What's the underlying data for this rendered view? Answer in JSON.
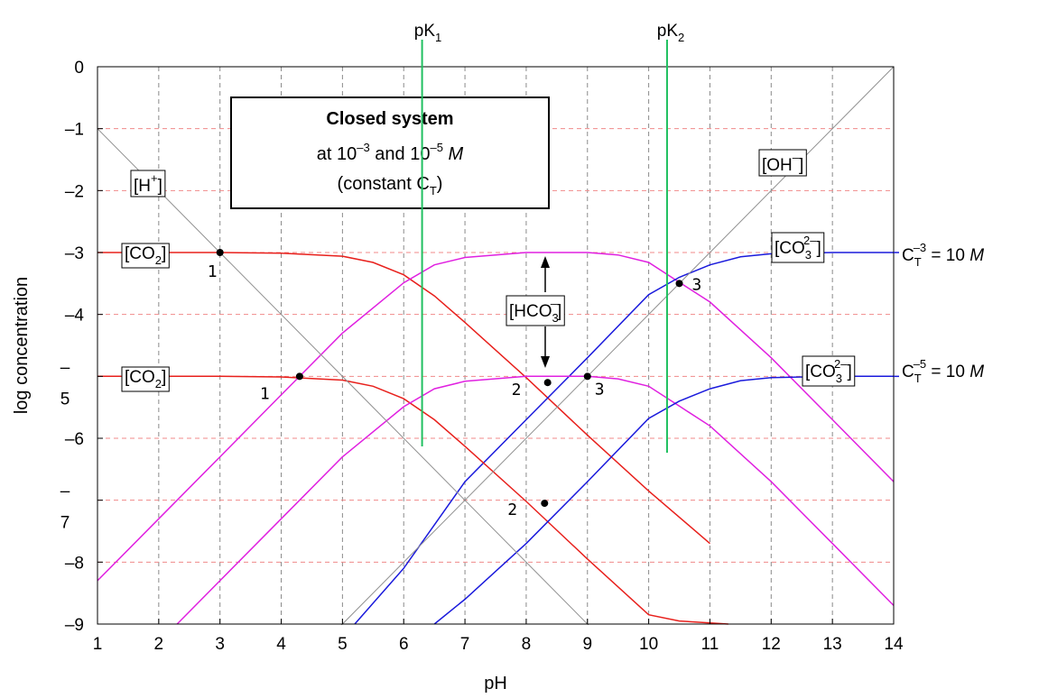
{
  "chart_data": {
    "type": "line",
    "title": "",
    "xlabel": "pH",
    "ylabel": "log concentration",
    "xlim": [
      1,
      14
    ],
    "ylim": [
      -9,
      0
    ],
    "x_ticks": [
      "1",
      "2",
      "3",
      "4",
      "5",
      "6",
      "7",
      "8",
      "9",
      "10",
      "11",
      "12",
      "13",
      "14"
    ],
    "y_ticks": [
      {
        "value": 0,
        "label": "0"
      },
      {
        "value": -1,
        "label": "–1"
      },
      {
        "value": -2,
        "label": "–2"
      },
      {
        "value": -3,
        "label": "–3"
      },
      {
        "value": -4,
        "label": "–4"
      },
      {
        "value": -5,
        "label": "–\n5"
      },
      {
        "value": -6,
        "label": "–6"
      },
      {
        "value": -7,
        "label": "–\n7"
      },
      {
        "value": -8,
        "label": "–8"
      },
      {
        "value": -9,
        "label": "–9"
      }
    ],
    "grid": true,
    "pK": [
      {
        "label": "pK",
        "sub": "1",
        "value": 6.3
      },
      {
        "label": "pK",
        "sub": "2",
        "value": 10.3
      }
    ],
    "annotation_box": {
      "title": "Closed system",
      "line2_pre": "at 10",
      "line2_sup1": "–3",
      "line2_mid": " and 10",
      "line2_sup2": "–5",
      "line2_unit": "M",
      "line3_pre": "(constant C",
      "line3_sub": "T",
      "line3_post": ")"
    },
    "colors": {
      "co2": "#e8201c",
      "hco3": "#e020e0",
      "co3": "#1a1adc",
      "h_oh": "#909090",
      "pk": "#20c060",
      "grid_v": "#8a8a8a",
      "grid_h": "#f08a8a"
    },
    "series": [
      {
        "species": "CO2",
        "log_ct": -3,
        "x": [
          1,
          2,
          3,
          4,
          5,
          5.5,
          6,
          6.5,
          7,
          8,
          9,
          10,
          11
        ],
        "y": [
          -3,
          -3,
          -3,
          -3.01,
          -3.06,
          -3.16,
          -3.36,
          -3.7,
          -4.13,
          -5.02,
          -5.95,
          -6.85,
          -7.7
        ]
      },
      {
        "species": "HCO3-",
        "log_ct": -3,
        "x": [
          1,
          2,
          3,
          4,
          5,
          6,
          6.5,
          7,
          8,
          9,
          9.5,
          10,
          10.5,
          11,
          12,
          13,
          14
        ],
        "y": [
          -8.3,
          -7.3,
          -6.3,
          -5.3,
          -4.3,
          -3.49,
          -3.2,
          -3.08,
          -3.0,
          -3.0,
          -3.04,
          -3.16,
          -3.48,
          -3.8,
          -4.7,
          -5.7,
          -6.7
        ]
      },
      {
        "species": "CO3 2-",
        "log_ct": -3,
        "x": [
          5.2,
          6,
          7,
          8,
          9,
          10,
          10.5,
          11,
          11.5,
          12,
          13,
          14
        ],
        "y": [
          -9,
          -8.1,
          -6.7,
          -5.7,
          -4.7,
          -3.68,
          -3.4,
          -3.2,
          -3.07,
          -3.02,
          -3,
          -3
        ]
      },
      {
        "species": "CO2",
        "log_ct": -5,
        "x": [
          1,
          2,
          3,
          4,
          5,
          5.5,
          6,
          6.5,
          7,
          8,
          9,
          10,
          10.5,
          11.3
        ],
        "y": [
          -5,
          -5,
          -5,
          -5.01,
          -5.06,
          -5.16,
          -5.36,
          -5.7,
          -6.13,
          -7.02,
          -7.95,
          -8.85,
          -8.95,
          -9
        ]
      },
      {
        "species": "HCO3-",
        "log_ct": -5,
        "x": [
          2.3,
          3,
          4,
          5,
          6,
          6.5,
          7,
          8,
          9,
          9.5,
          10,
          10.5,
          11,
          12,
          13,
          14
        ],
        "y": [
          -9,
          -8.3,
          -7.3,
          -6.3,
          -5.49,
          -5.2,
          -5.08,
          -5.0,
          -5.0,
          -5.04,
          -5.16,
          -5.48,
          -5.8,
          -6.7,
          -7.7,
          -8.7
        ]
      },
      {
        "species": "CO3 2-",
        "log_ct": -5,
        "x": [
          6.5,
          7,
          8,
          9,
          10,
          10.5,
          11,
          11.5,
          12,
          13,
          14
        ],
        "y": [
          -9,
          -8.6,
          -7.7,
          -6.7,
          -5.68,
          -5.4,
          -5.2,
          -5.07,
          -5.02,
          -5,
          -5
        ]
      },
      {
        "species": "H+",
        "x": [
          1,
          10
        ],
        "y": [
          -1,
          -10
        ]
      },
      {
        "species": "OH-",
        "x": [
          4.5,
          14
        ],
        "y": [
          -9.5,
          0
        ]
      }
    ],
    "labels": [
      {
        "key": "h_plus",
        "base": "[H",
        "sup": "+",
        "post": "]"
      },
      {
        "key": "oh_minus",
        "base": "[OH",
        "sup": "–",
        "post": "]"
      },
      {
        "key": "co2_hi",
        "base": "[CO",
        "sub": "2",
        "post": "]"
      },
      {
        "key": "co2_lo",
        "base": "[CO",
        "sub": "2",
        "post": "]"
      },
      {
        "key": "hco3",
        "base": "[HCO",
        "sub": "3",
        "sup": "–",
        "post": "]"
      },
      {
        "key": "co3_hi",
        "base": "[CO",
        "sub": "3",
        "sup": "2–",
        "post": "]"
      },
      {
        "key": "co3_lo",
        "base": "[CO",
        "sub": "3",
        "sup": "2–",
        "post": "]"
      }
    ],
    "ct_labels": [
      {
        "pre": "C",
        "sub": "T",
        "mid": " = 10",
        "sup": "–3",
        "unit": "M"
      },
      {
        "pre": "C",
        "sub": "T",
        "mid": " = 10",
        "sup": "–5",
        "unit": "M"
      }
    ],
    "points": [
      {
        "num": "1",
        "x": 3.0,
        "y": -3.0
      },
      {
        "num": "1",
        "x": 4.3,
        "y": -5.0
      },
      {
        "num": "2",
        "x": 8.35,
        "y": -5.1
      },
      {
        "num": "3",
        "x": 9.0,
        "y": -5.0
      },
      {
        "num": "2",
        "x": 8.3,
        "y": -7.05
      },
      {
        "num": "3",
        "x": 10.5,
        "y": -3.5
      }
    ]
  }
}
